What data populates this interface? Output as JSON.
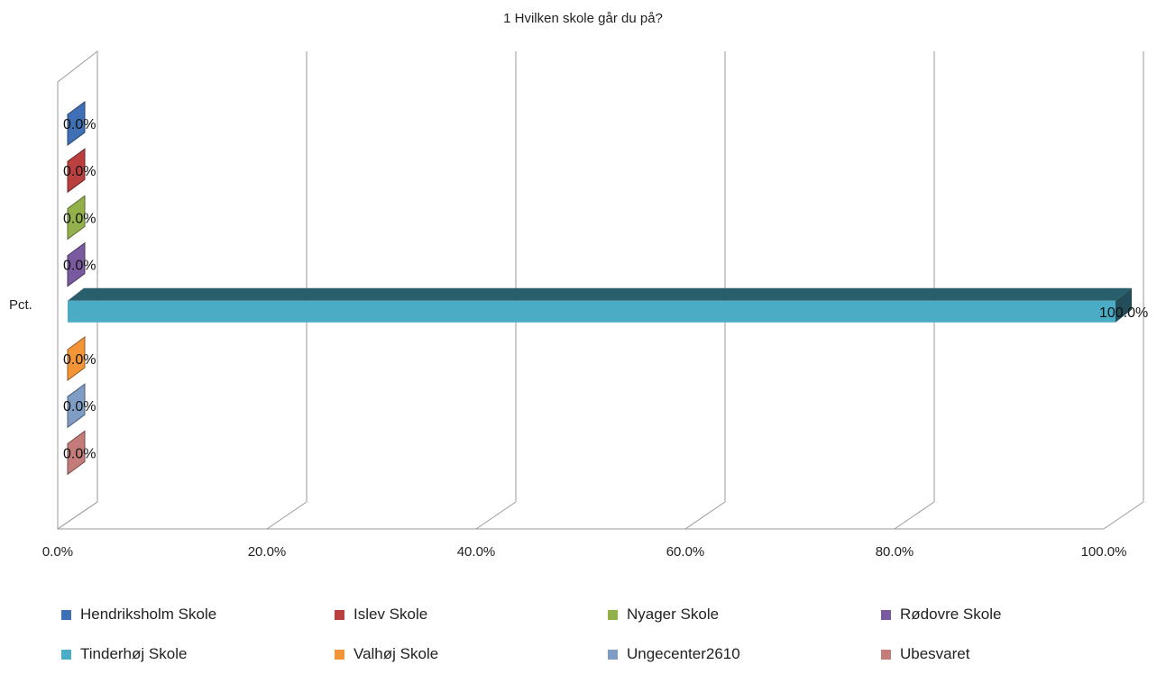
{
  "chart_data": {
    "type": "bar",
    "orientation": "horizontal",
    "style": "3d",
    "title": "1 Hvilken skole går du på?",
    "category_label": "Pct.",
    "x_range": [
      0,
      100
    ],
    "x_ticks": [
      "0.0%",
      "20.0%",
      "40.0%",
      "60.0%",
      "80.0%",
      "100.0%"
    ],
    "grid": true,
    "legend_position": "bottom",
    "series": [
      {
        "name": "Hendriksholm Skole",
        "value": 0.0,
        "label": "0.0%",
        "color": "#3f6fb5"
      },
      {
        "name": "Islev Skole",
        "value": 0.0,
        "label": "0.0%",
        "color": "#b9403e"
      },
      {
        "name": "Nyager Skole",
        "value": 0.0,
        "label": "0.0%",
        "color": "#93b14b"
      },
      {
        "name": "Rødovre Skole",
        "value": 0.0,
        "label": "0.0%",
        "color": "#7a5a9e"
      },
      {
        "name": "Tinderhøj Skole",
        "value": 100.0,
        "label": "100.0%",
        "color": "#4bacc6"
      },
      {
        "name": "Valhøj Skole",
        "value": 0.0,
        "label": "0.0%",
        "color": "#f39536"
      },
      {
        "name": "Ungecenter2610",
        "value": 0.0,
        "label": "0.0%",
        "color": "#7f9cc5"
      },
      {
        "name": "Ubesvaret",
        "value": 0.0,
        "label": "0.0%",
        "color": "#c47c7a"
      }
    ]
  }
}
